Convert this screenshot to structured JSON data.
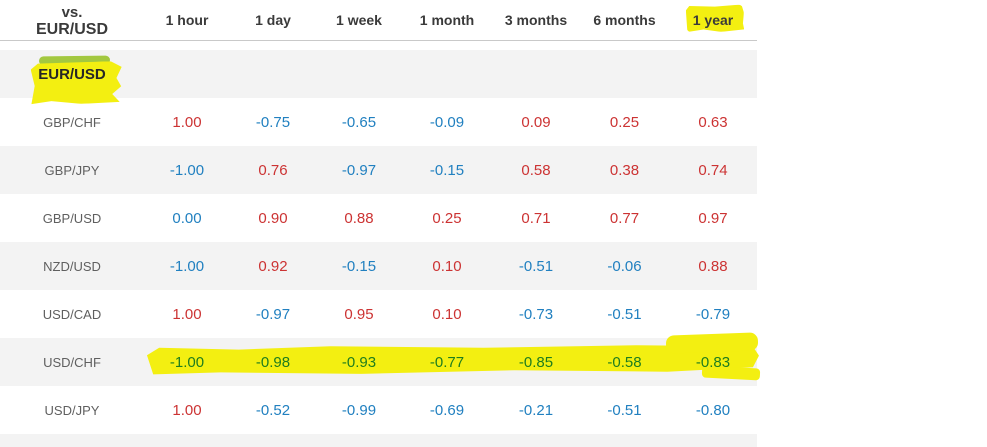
{
  "table": {
    "corner": {
      "line1": "vs.",
      "line2": "EUR/USD"
    },
    "columns": [
      "1 hour",
      "1 day",
      "1 week",
      "1 month",
      "3 months",
      "6 months",
      "1 year"
    ],
    "rows": [
      {
        "pair": "EUR/USD",
        "values": [],
        "bold": true,
        "highlighted": true
      },
      {
        "pair": "GBP/CHF",
        "values": [
          "1.00",
          "-0.75",
          "-0.65",
          "-0.09",
          "0.09",
          "0.25",
          "0.63"
        ]
      },
      {
        "pair": "GBP/JPY",
        "values": [
          "-1.00",
          "0.76",
          "-0.97",
          "-0.15",
          "0.58",
          "0.38",
          "0.74"
        ]
      },
      {
        "pair": "GBP/USD",
        "values": [
          "0.00",
          "0.90",
          "0.88",
          "0.25",
          "0.71",
          "0.77",
          "0.97"
        ]
      },
      {
        "pair": "NZD/USD",
        "values": [
          "-1.00",
          "0.92",
          "-0.15",
          "0.10",
          "-0.51",
          "-0.06",
          "0.88"
        ]
      },
      {
        "pair": "USD/CAD",
        "values": [
          "1.00",
          "-0.97",
          "0.95",
          "0.10",
          "-0.73",
          "-0.51",
          "-0.79"
        ]
      },
      {
        "pair": "USD/CHF",
        "values": [
          "-1.00",
          "-0.98",
          "-0.93",
          "-0.77",
          "-0.85",
          "-0.58",
          "-0.83"
        ],
        "value_color": "green",
        "highlighted": true
      },
      {
        "pair": "USD/JPY",
        "values": [
          "1.00",
          "-0.52",
          "-0.99",
          "-0.69",
          "-0.21",
          "-0.51",
          "-0.80"
        ]
      }
    ],
    "annotations": {
      "highlighted_column": "1 year",
      "highlighted_row_label": "EUR/USD",
      "highlighted_row_values": "USD/CHF"
    },
    "colors": {
      "positive_value": "#cc3333",
      "negative_value": "#2180c0",
      "highlighted_value": "#1e7d1e",
      "highlighter_yellow": "#f3ef11",
      "highlighter_green": "#a3c840",
      "row_stripe": "#f3f3f3"
    }
  }
}
